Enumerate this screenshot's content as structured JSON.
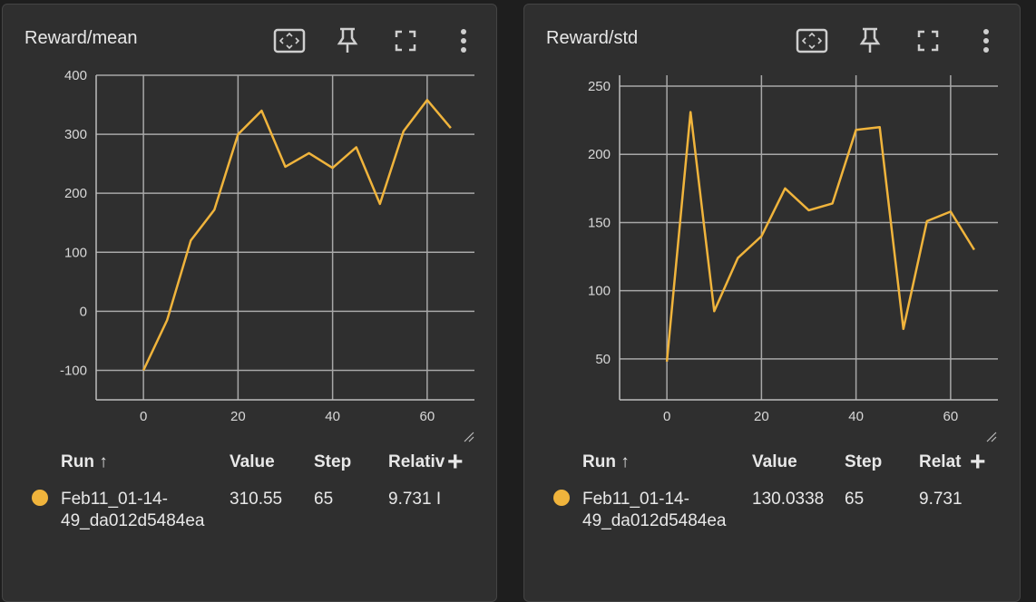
{
  "colors": {
    "series": "#f0b43c",
    "grid": "#a8a8a8",
    "axis": "#bdbdbd"
  },
  "cards": [
    {
      "title": "Reward/mean",
      "icons": [
        "fit-domain-icon",
        "pin-icon",
        "fullscreen-icon",
        "more-vert-icon"
      ],
      "table": {
        "headers": {
          "run": "Run ↑",
          "value": "Value",
          "step": "Step",
          "relative": "Relativ"
        },
        "row": {
          "run_line1": "Feb11_01-14-",
          "run_line2": "49_da012d5484ea",
          "value": "310.55",
          "step": "65",
          "relative": "9.731 I"
        },
        "add_label": "+"
      },
      "chart_data": {
        "type": "line",
        "x": [
          0,
          5,
          10,
          15,
          20,
          25,
          30,
          35,
          40,
          45,
          50,
          55,
          60,
          65
        ],
        "series": [
          {
            "values": [
              -100,
              -15,
              120,
              172,
              300,
              340,
              245,
              268,
              243,
              278,
              182,
              305,
              358,
              310.55
            ]
          }
        ],
        "xlim": [
          -10,
          70
        ],
        "ylim": [
          -150,
          400
        ],
        "xticks": [
          0,
          20,
          40,
          60
        ],
        "yticks": [
          -100,
          0,
          100,
          200,
          300,
          400
        ],
        "xlabel": "",
        "ylabel": "",
        "grid": true
      }
    },
    {
      "title": "Reward/std",
      "icons": [
        "fit-domain-icon",
        "pin-icon",
        "fullscreen-icon",
        "more-vert-icon"
      ],
      "table": {
        "headers": {
          "run": "Run ↑",
          "value": "Value",
          "step": "Step",
          "relative": "Relat"
        },
        "row": {
          "run_line1": "Feb11_01-14-",
          "run_line2": "49_da012d5484ea",
          "value": "130.0338",
          "step": "65",
          "relative": "9.731"
        },
        "add_label": "+"
      },
      "chart_data": {
        "type": "line",
        "x": [
          0,
          5,
          10,
          15,
          20,
          25,
          30,
          35,
          40,
          45,
          50,
          55,
          60,
          65
        ],
        "series": [
          {
            "values": [
              48,
              231,
              85,
              124,
              140,
              175,
              159,
              164,
              218,
              220,
              72,
              151,
              158,
              130.0338
            ]
          }
        ],
        "xlim": [
          -10,
          70
        ],
        "ylim": [
          20,
          258
        ],
        "xticks": [
          0,
          20,
          40,
          60
        ],
        "yticks": [
          50,
          100,
          150,
          200,
          250
        ],
        "xlabel": "",
        "ylabel": "",
        "grid": true
      }
    }
  ]
}
